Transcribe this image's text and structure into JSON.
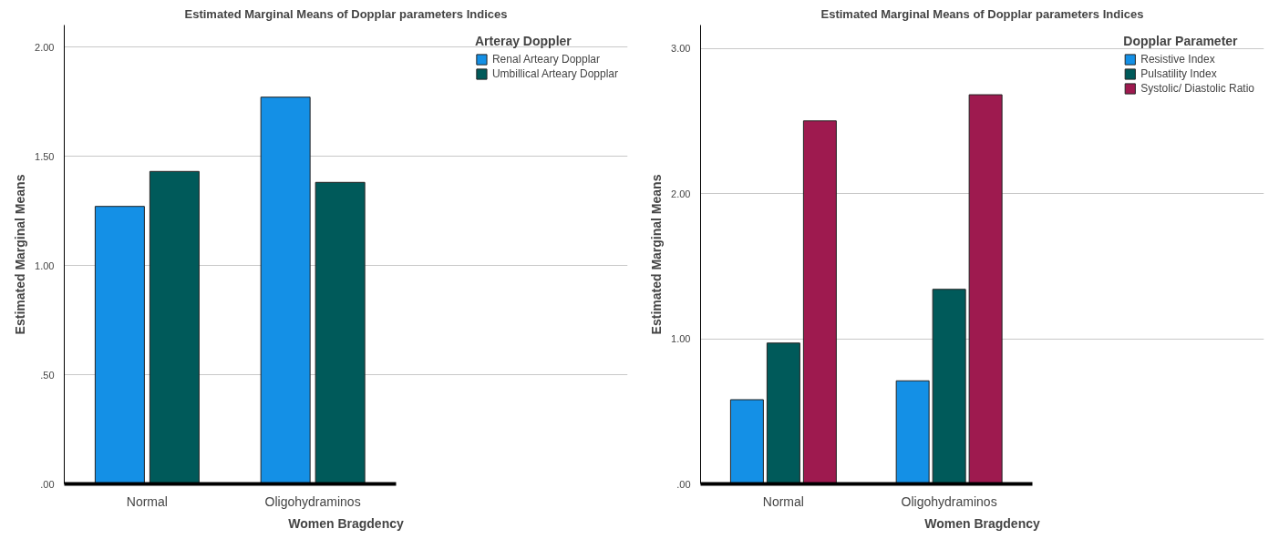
{
  "chart_data": [
    {
      "type": "bar",
      "title": "Estimated Marginal Means of Dopplar parameters Indices",
      "xlabel": "Women Bragdency",
      "ylabel": "Estimated Marginal Means",
      "legend_title": "Arteray Doppler",
      "categories": [
        "Normal",
        "Oligohydraminos"
      ],
      "series": [
        {
          "name": "Renal Arteary Dopplar",
          "color": "#1490e6",
          "values": [
            1.27,
            1.77
          ]
        },
        {
          "name": "Umbillical Arteary Dopplar",
          "color": "#005a5a",
          "values": [
            1.43,
            1.38
          ]
        }
      ],
      "ylim": [
        0,
        2.1
      ],
      "yticks": [
        {
          "value": 0,
          "label": ".00"
        },
        {
          "value": 0.5,
          "label": ".50"
        },
        {
          "value": 1,
          "label": "1.00"
        },
        {
          "value": 1.5,
          "label": "1.50"
        },
        {
          "value": 2,
          "label": "2.00"
        }
      ],
      "grid": "y",
      "legend": "right"
    },
    {
      "type": "bar",
      "title": "Estimated Marginal Means of Dopplar parameters Indices",
      "xlabel": "Women Bragdency",
      "ylabel": "Estimated Marginal Means",
      "legend_title": "Dopplar Parameter",
      "categories": [
        "Normal",
        "Oligohydraminos"
      ],
      "series": [
        {
          "name": "Resistive Index",
          "color": "#1490e6",
          "values": [
            0.58,
            0.71
          ]
        },
        {
          "name": "Pulsatility Index",
          "color": "#005a5a",
          "values": [
            0.97,
            1.34
          ]
        },
        {
          "name": "Systolic/ Diastolic Ratio",
          "color": "#9e1a4f",
          "values": [
            2.5,
            2.68
          ]
        }
      ],
      "ylim": [
        0,
        3.16
      ],
      "yticks": [
        {
          "value": 0,
          "label": ".00"
        },
        {
          "value": 1,
          "label": "1.00"
        },
        {
          "value": 2,
          "label": "2.00"
        },
        {
          "value": 3,
          "label": "3.00"
        }
      ],
      "grid": "y",
      "legend": "right"
    }
  ]
}
